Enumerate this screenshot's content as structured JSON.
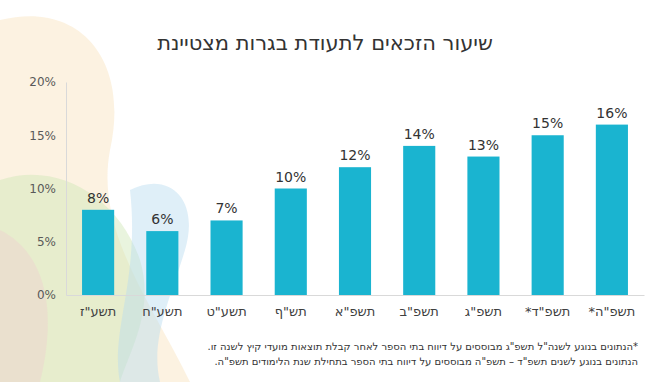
{
  "chart_data": {
    "type": "bar",
    "title": "שיעור הזכאים לתעודת בגרות מצטיינת",
    "categories": [
      "תשע\"ז",
      "תשע\"ח",
      "תשע\"ט",
      "תש\"ף",
      "תשפ\"א",
      "תשפ\"ב",
      "תשפ\"ג",
      "תשפ\"ד*",
      "תשפ\"ה*"
    ],
    "values": [
      8,
      6,
      7,
      10,
      12,
      14,
      13,
      15,
      16
    ],
    "value_labels": [
      "8%",
      "6%",
      "7%",
      "10%",
      "12%",
      "14%",
      "13%",
      "15%",
      "16%"
    ],
    "data_labels": true,
    "color": "#1ab4d0",
    "ylim": [
      0,
      20
    ],
    "yticks": [
      {
        "value": 0,
        "label": "0%"
      },
      {
        "value": 5,
        "label": "5%"
      },
      {
        "value": 10,
        "label": "10%"
      },
      {
        "value": 15,
        "label": "15%"
      },
      {
        "value": 20,
        "label": "20%"
      }
    ],
    "grid": false,
    "annotations": [
      "*הנתונים בנוגע לשנה\"ל תשפ\"ג מבוססים על דיווח בתי הספר לאחר קבלת תוצאות מועדי קיץ לשנה זו.",
      "הנתונים בנוגע לשנים תשפ\"ד – תשפ\"ה מבוססים על דיווח בתי הספר בתחילת שנת הלימודים תשפ\"ה."
    ]
  }
}
